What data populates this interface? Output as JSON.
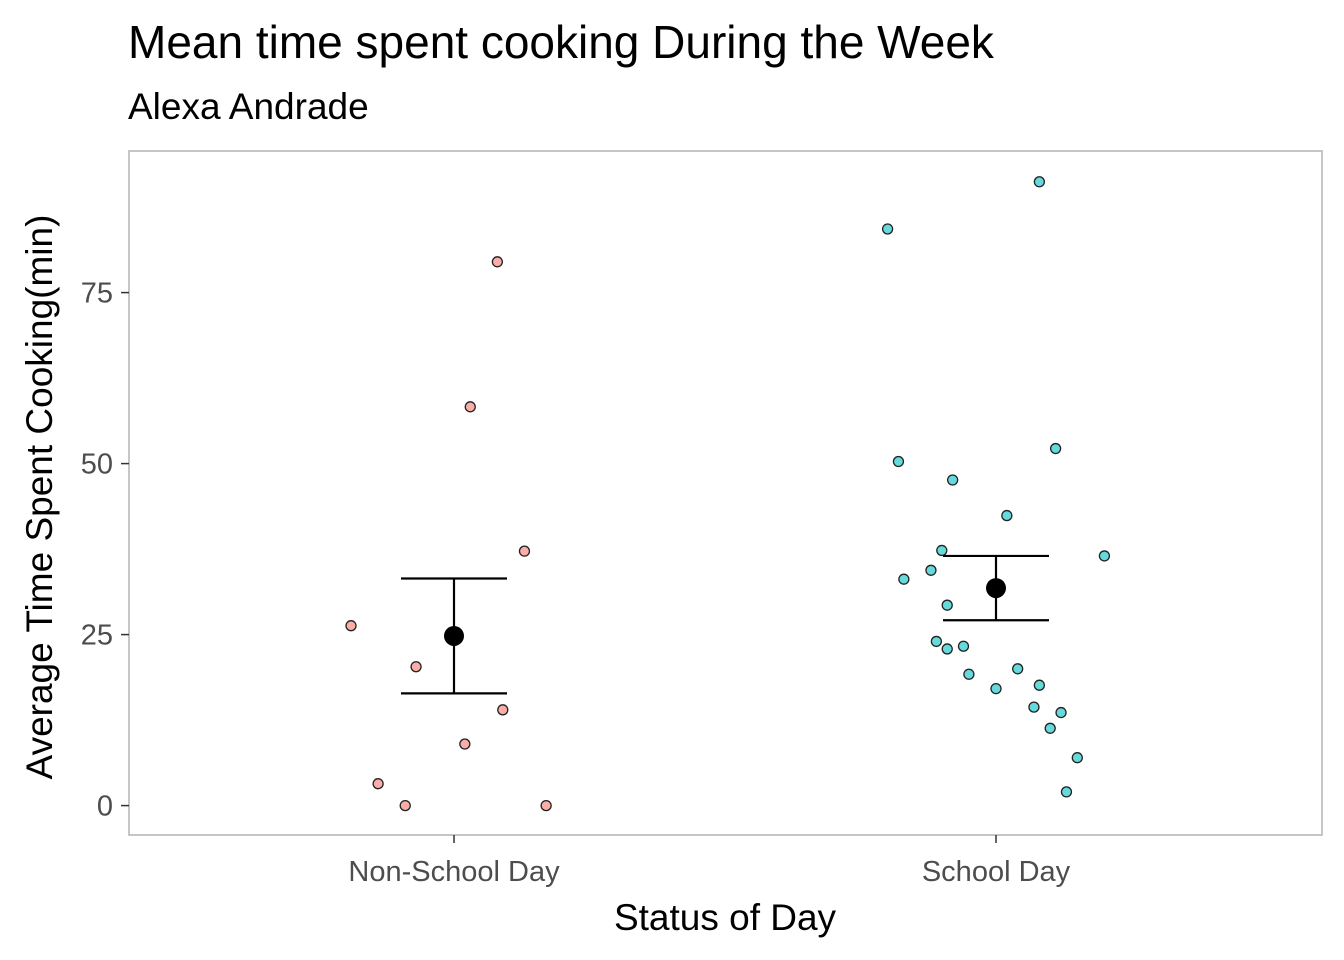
{
  "chart_data": {
    "type": "scatter",
    "title": "Mean time spent cooking During the Week",
    "subtitle": "Alexa Andrade",
    "xlabel": "Status of Day",
    "ylabel": "Average Time Spent Cooking(min)",
    "categories": [
      "Non-School Day",
      "School Day"
    ],
    "y_ticks": [
      0,
      25,
      50,
      75
    ],
    "ylim": [
      -4.3,
      95.7
    ],
    "grid": false,
    "legend": "none",
    "colors": {
      "Non-School Day": "#F8766D",
      "School Day": "#00BFC4",
      "summary": "#000000"
    },
    "series": [
      {
        "category": "Non-School Day",
        "points": [
          {
            "jitter": -0.19,
            "y": 26.3
          },
          {
            "jitter": -0.07,
            "y": 20.3
          },
          {
            "jitter": -0.14,
            "y": 3.2
          },
          {
            "jitter": -0.09,
            "y": 0.0
          },
          {
            "jitter": 0.08,
            "y": 79.5
          },
          {
            "jitter": 0.03,
            "y": 58.3
          },
          {
            "jitter": 0.13,
            "y": 37.2
          },
          {
            "jitter": 0.09,
            "y": 14.0
          },
          {
            "jitter": 0.02,
            "y": 9.0
          },
          {
            "jitter": 0.17,
            "y": 0.0
          }
        ],
        "mean": 24.8,
        "error_lower": 16.4,
        "error_upper": 33.2
      },
      {
        "category": "School Day",
        "points": [
          {
            "jitter": -0.2,
            "y": 84.3
          },
          {
            "jitter": 0.08,
            "y": 91.2
          },
          {
            "jitter": -0.18,
            "y": 50.3
          },
          {
            "jitter": 0.11,
            "y": 52.2
          },
          {
            "jitter": -0.08,
            "y": 47.6
          },
          {
            "jitter": 0.02,
            "y": 42.4
          },
          {
            "jitter": -0.1,
            "y": 37.3
          },
          {
            "jitter": 0.2,
            "y": 36.5
          },
          {
            "jitter": -0.17,
            "y": 33.1
          },
          {
            "jitter": -0.12,
            "y": 34.4
          },
          {
            "jitter": -0.09,
            "y": 29.3
          },
          {
            "jitter": -0.11,
            "y": 24.0
          },
          {
            "jitter": -0.06,
            "y": 23.3
          },
          {
            "jitter": -0.09,
            "y": 22.9
          },
          {
            "jitter": -0.05,
            "y": 19.2
          },
          {
            "jitter": 0.0,
            "y": 17.1
          },
          {
            "jitter": 0.04,
            "y": 20.0
          },
          {
            "jitter": 0.08,
            "y": 17.6
          },
          {
            "jitter": 0.07,
            "y": 14.4
          },
          {
            "jitter": 0.12,
            "y": 13.6
          },
          {
            "jitter": 0.1,
            "y": 11.3
          },
          {
            "jitter": 0.15,
            "y": 7.0
          },
          {
            "jitter": 0.13,
            "y": 2.0
          }
        ],
        "mean": 31.8,
        "error_lower": 27.1,
        "error_upper": 36.5
      }
    ]
  }
}
